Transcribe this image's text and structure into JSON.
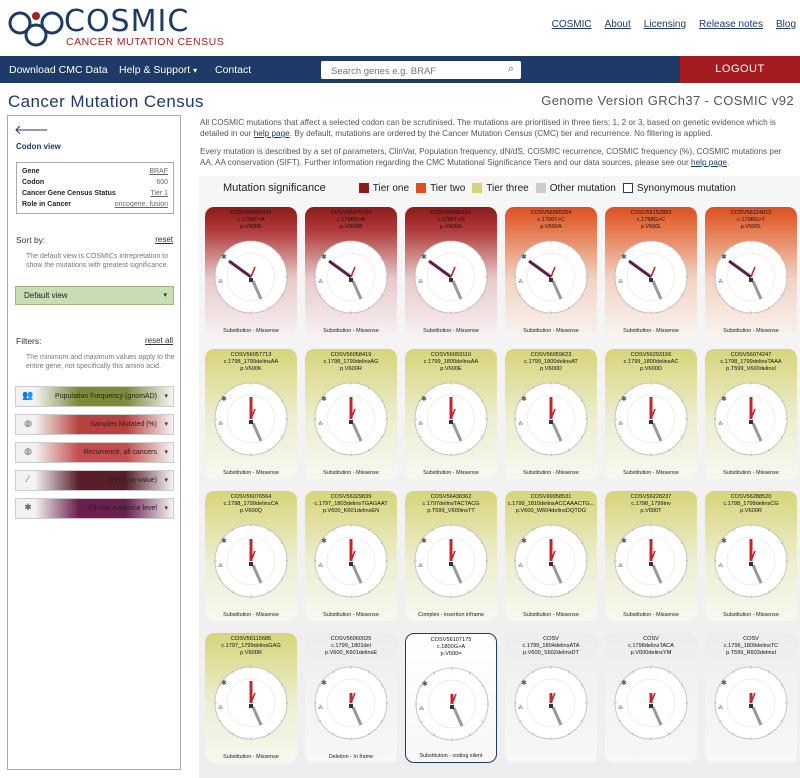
{
  "header": {
    "logo_text": "COSMIC",
    "logo_sub": "CANCER MUTATION CENSUS",
    "links": [
      "COSMIC",
      "About",
      "Licensing",
      "Release notes",
      "Blog"
    ]
  },
  "nav": {
    "download": "Download CMC Data",
    "help": "Help & Support",
    "contact": "Contact",
    "search_placeholder": "Search genes e.g. BRAF",
    "logout": "LOGOUT"
  },
  "page": {
    "title": "Cancer Mutation Census",
    "genome": "Genome Version GRCh37 - COSMIC v92"
  },
  "sidebar": {
    "codon_view": "Codon view",
    "gene": [
      {
        "label": "Gene",
        "value": "BRAF"
      },
      {
        "label": "Codon",
        "value": "600"
      },
      {
        "label": "Cancer Gene Census Status",
        "value": "Tier 1"
      },
      {
        "label": "Role in Cancer",
        "value": "oncogene, fusion"
      }
    ],
    "sort_by": "Sort by:",
    "reset": "reset",
    "sort_desc": "The default view is COSMICs intrepretation to show the mutations with greatest significance.",
    "default_view": "Default view",
    "filters": "Filters:",
    "reset_all": "reset all",
    "filters_desc": "The minimum and maximum values apply to the entire gene, not specifically this amino acid.",
    "filter_items": [
      {
        "label": "Population Frequency (gnomAD)",
        "color": "#7d8a3a",
        "icon": "population-icon",
        "glyph": "👥"
      },
      {
        "label": "Samples Mutated (%)",
        "color": "#b8423f",
        "icon": "samples-icon",
        "glyph": "◍"
      },
      {
        "label": "Recurrence, all cancers",
        "color": "#c44d4d",
        "icon": "recurrence-icon",
        "glyph": "◍"
      },
      {
        "label": "dN/dS (q-value)",
        "color": "#5a1e2a",
        "icon": "dnds-icon",
        "glyph": "⁄"
      },
      {
        "label": "ClinVar evidence level",
        "color": "#6b1f4e",
        "icon": "clinvar-icon",
        "glyph": "✱"
      }
    ]
  },
  "intro": {
    "p1": "All COSMIC mutations that affect a selected codon can be scrutinised. The mutations are prioritised in three tiers; 1, 2 or 3, based on genetic evidence which is detailed in our",
    "p1_link": "help page",
    "p1_end": ". By default, mutations are ordered by the Cancer Mutation Census (CMC) tier and recurrence. No filtering is applied.",
    "p2": "Every mutation is described by a set of parameters, ClinVar, Population frequency, dN/dS, COSMIC recurrence, COSMIC frequency (%), COSMIC mutations per AA, AA conservation (SIFT). Further information regarding the CMC Mutational Significance Tiers and our data sources, please see our",
    "p2_link": "help page",
    "p2_end": "."
  },
  "legend": {
    "title": "Mutation significance",
    "items": [
      {
        "label": "Tier one",
        "color": "#8e1b1b"
      },
      {
        "label": "Tier two",
        "color": "#dd4f22"
      },
      {
        "label": "Tier three",
        "color": "#d6d47a"
      },
      {
        "label": "Other mutation",
        "color": "#cccccc"
      },
      {
        "label": "Synonymous mutation",
        "color": "#ffffff"
      }
    ]
  },
  "cards": [
    {
      "id": "COSV56056643",
      "cds": "c.1799T>A",
      "aa": "p.V600E",
      "type": "Substitution - Missense",
      "tier": "t1"
    },
    {
      "id": "COSV56075762",
      "cds": "c.1798G>A",
      "aa": "p.V600M",
      "type": "Substitution - Missense",
      "tier": "t1"
    },
    {
      "id": "COSV56080151",
      "cds": "c.1799T>G",
      "aa": "p.V600G",
      "type": "Substitution - Missense",
      "tier": "t1"
    },
    {
      "id": "COSV56065204",
      "cds": "c.1799T>C",
      "aa": "p.V600A",
      "type": "Substitution - Missense",
      "tier": "t2"
    },
    {
      "id": "COSV56152883",
      "cds": "c.1798G>C",
      "aa": "p.V600L",
      "type": "Substitution - Missense",
      "tier": "t2"
    },
    {
      "id": "COSV56124012",
      "cds": "c.1798G>T",
      "aa": "p.V600L",
      "type": "Substitution - Missense",
      "tier": "t2"
    },
    {
      "id": "COSV56057713",
      "cds": "c.1798_1799delinsAA",
      "aa": "p.V600K",
      "type": "Substitution - Missense",
      "tier": "t3"
    },
    {
      "id": "COSV56058419",
      "cds": "c.1798_1799delinsAG",
      "aa": "p.V600R",
      "type": "Substitution - Missense",
      "tier": "t3"
    },
    {
      "id": "COSV56059110",
      "cds": "c.1799_1800delinsAA",
      "aa": "p.V600E",
      "type": "Substitution - Missense",
      "tier": "t3"
    },
    {
      "id": "COSV56059623",
      "cds": "c.1799_1800delinsAT",
      "aa": "p.V600D",
      "type": "Substitution - Missense",
      "tier": "t3"
    },
    {
      "id": "COSV56293156",
      "cds": "c.1799_1800delinsAC",
      "aa": "p.V600D",
      "type": "Substitution - Missense",
      "tier": "t3"
    },
    {
      "id": "COSV56074247",
      "cds": "c.1798_1799delinsTAAA",
      "aa": "p.T599_V600delinsI",
      "type": "Substitution - Missense",
      "tier": "t3"
    },
    {
      "id": "COSV56076564",
      "cds": "c.1798_1799delinsCA",
      "aa": "p.V600Q",
      "type": "Substitution - Missense",
      "tier": "t3"
    },
    {
      "id": "COSV56329839",
      "cds": "c.1797_1803delinsTGAGAAT",
      "aa": "p.V600_K601delinsEN",
      "type": "Substitution - Missense",
      "tier": "t3"
    },
    {
      "id": "COSV56438362",
      "cds": "c.1797delinsTACTACG",
      "aa": "p.T599_V600insTT",
      "type": "Complex - insertion inframe",
      "tier": "t3"
    },
    {
      "id": "COSV99958531",
      "cds": "c.1799_1810delinsACCAAACTG...",
      "aa": "p.V600_W604delinsDQTDG",
      "type": "Substitution - Missense",
      "tier": "t3"
    },
    {
      "id": "COSV56228237",
      "cds": "c.1798_1799inv",
      "aa": "p.V600T",
      "type": "Substitution - Missense",
      "tier": "t3"
    },
    {
      "id": "COSV56288520",
      "cds": "c.1798_1799delinsCG",
      "aa": "p.V600R",
      "type": "Substitution - Missense",
      "tier": "t3"
    },
    {
      "id": "COSV56115685",
      "cds": "c.1797_1799delinsGAG",
      "aa": "p.V600R",
      "type": "Substitution - Missense",
      "tier": "t3"
    },
    {
      "id": "COSV56060025",
      "cds": "c.1799_1801del",
      "aa": "p.V600_K601delinsE",
      "type": "Deletion - In frame",
      "tier": "oth"
    },
    {
      "id": "COSV56107175",
      "cds": "c.1800G>A",
      "aa": "p.V600=",
      "type": "Substitution - coding silent",
      "tier": "syn"
    },
    {
      "id": "COSV",
      "cds": "c.1799_1804delinsATA",
      "aa": "p.V600_S602delinsDT",
      "type": "",
      "tier": "oth"
    },
    {
      "id": "COSV",
      "cds": "c.1798delinsTACA",
      "aa": "p.V600delinsYM",
      "type": "",
      "tier": "oth"
    },
    {
      "id": "COSV",
      "cds": "c.1796_1809delinsTC",
      "aa": "p.T599_R603delinsI",
      "type": "",
      "tier": "oth"
    }
  ]
}
